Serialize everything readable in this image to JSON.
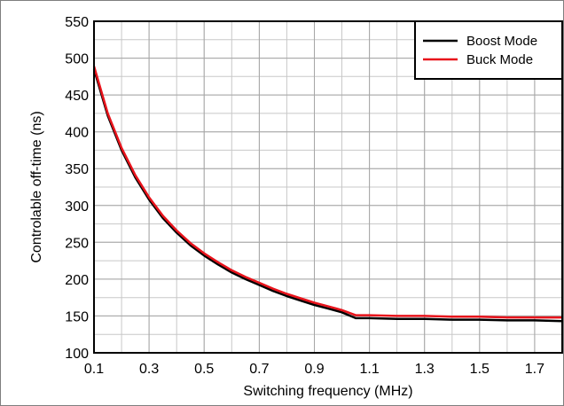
{
  "chart_data": {
    "type": "line",
    "title": "",
    "xlabel": "Switching frequency (MHz)",
    "ylabel": "Controlable off-time (ns)",
    "xlim": [
      0.1,
      1.8
    ],
    "ylim": [
      100,
      550
    ],
    "x_ticks": [
      0.1,
      0.3,
      0.5,
      0.7,
      0.9,
      1.1,
      1.3,
      1.5,
      1.7
    ],
    "x_tick_labels": [
      "0.1",
      "0.3",
      "0.5",
      "0.7",
      "0.9",
      "1.1",
      "1.3",
      "1.5",
      "1.7"
    ],
    "y_ticks": [
      100,
      150,
      200,
      250,
      300,
      350,
      400,
      450,
      500,
      550
    ],
    "y_tick_labels": [
      "100",
      "150",
      "200",
      "250",
      "300",
      "350",
      "400",
      "450",
      "500",
      "550"
    ],
    "x_minor_step": 0.1,
    "y_minor_step": 25,
    "grid": true,
    "legend_position": "top-right",
    "series": [
      {
        "name": "Boost Mode",
        "color": "#000000",
        "x": [
          0.1,
          0.15,
          0.2,
          0.25,
          0.3,
          0.35,
          0.4,
          0.45,
          0.5,
          0.55,
          0.6,
          0.65,
          0.7,
          0.75,
          0.8,
          0.85,
          0.9,
          0.95,
          1.0,
          1.05,
          1.1,
          1.2,
          1.3,
          1.4,
          1.5,
          1.6,
          1.7,
          1.8
        ],
        "y": [
          485,
          422,
          375,
          338,
          308,
          283,
          263,
          246,
          232,
          220,
          209,
          200,
          192,
          184,
          177,
          171,
          165,
          160,
          155,
          147,
          147,
          146,
          146,
          145,
          145,
          144,
          144,
          143
        ]
      },
      {
        "name": "Buck Mode",
        "color": "#e8131b",
        "x": [
          0.1,
          0.15,
          0.2,
          0.25,
          0.3,
          0.35,
          0.4,
          0.45,
          0.5,
          0.55,
          0.6,
          0.65,
          0.7,
          0.75,
          0.8,
          0.85,
          0.9,
          0.95,
          1.0,
          1.05,
          1.1,
          1.2,
          1.3,
          1.4,
          1.5,
          1.6,
          1.7,
          1.8
        ],
        "y": [
          489,
          425,
          378,
          341,
          311,
          286,
          266,
          249,
          235,
          223,
          212,
          203,
          195,
          187,
          180,
          174,
          168,
          163,
          158,
          151,
          151,
          150,
          150,
          149,
          149,
          148,
          148,
          148
        ]
      }
    ]
  }
}
